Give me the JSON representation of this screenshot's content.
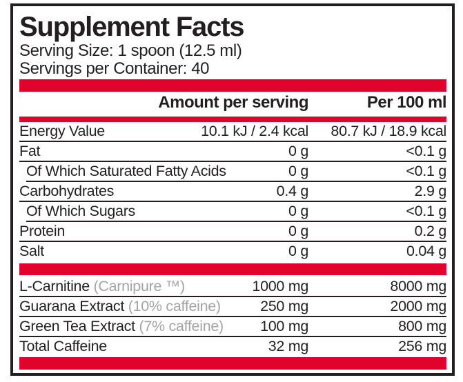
{
  "label": {
    "title": "Supplement Facts",
    "serving_size": "Serving Size: 1 spoon (12.5 ml)",
    "servings_per_container": "Servings per Container: 40",
    "col_amount_header": "Amount per serving",
    "col_per100_header": "Per 100 ml"
  },
  "colors": {
    "accent_red": "#e0042c",
    "text_black": "#231f20",
    "note_gray": "#a5a3a4"
  },
  "nutrition_rows": [
    {
      "label": "Energy Value",
      "amount": "10.1 kJ / 2.4 kcal",
      "per_100ml": "80.7 kJ / 18.9 kcal",
      "indent": false
    },
    {
      "label": "Fat",
      "amount": "0 g",
      "per_100ml": "<0.1 g",
      "indent": false
    },
    {
      "label": "Of Which Saturated Fatty Acids",
      "amount": "0 g",
      "per_100ml": "<0.1 g",
      "indent": true
    },
    {
      "label": "Carbohydrates",
      "amount": "0.4 g",
      "per_100ml": "2.9 g",
      "indent": false
    },
    {
      "label": "Of Which Sugars",
      "amount": "0 g",
      "per_100ml": "<0.1 g",
      "indent": true
    },
    {
      "label": "Protein",
      "amount": "0 g",
      "per_100ml": "0.2 g",
      "indent": false
    },
    {
      "label": "Salt",
      "amount": "0 g",
      "per_100ml": "0.04 g",
      "indent": false
    }
  ],
  "ingredient_rows": [
    {
      "label": "L-Carnitine",
      "note": "(Carnipure ™)",
      "amount": "1000 mg",
      "per_100ml": "8000 mg"
    },
    {
      "label": "Guarana Extract",
      "note": "(10% caffeine)",
      "amount": "250 mg",
      "per_100ml": "2000 mg"
    },
    {
      "label": "Green Tea Extract",
      "note": "(7% caffeine)",
      "amount": "100 mg",
      "per_100ml": "800 mg"
    },
    {
      "label": "Total Caffeine",
      "note": "",
      "amount": "32 mg",
      "per_100ml": "256 mg"
    }
  ]
}
